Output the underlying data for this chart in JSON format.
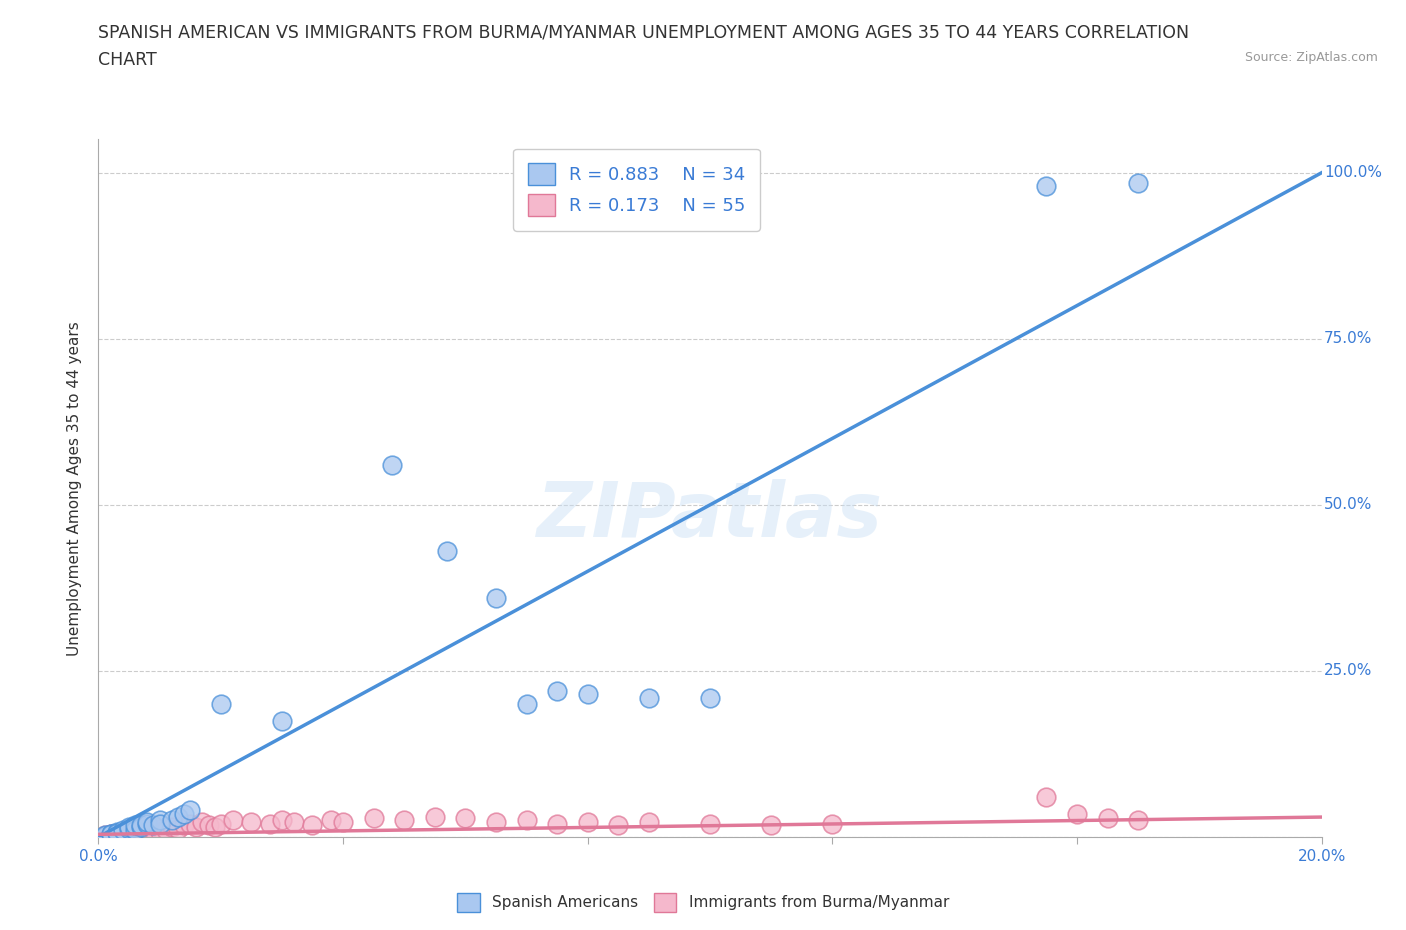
{
  "title_line1": "SPANISH AMERICAN VS IMMIGRANTS FROM BURMA/MYANMAR UNEMPLOYMENT AMONG AGES 35 TO 44 YEARS CORRELATION",
  "title_line2": "CHART",
  "source_text": "Source: ZipAtlas.com",
  "watermark": "ZIPatlas",
  "ylabel": "Unemployment Among Ages 35 to 44 years",
  "xlim": [
    0.0,
    0.2
  ],
  "ylim": [
    0.0,
    1.05
  ],
  "r_blue": 0.883,
  "n_blue": 34,
  "r_pink": 0.173,
  "n_pink": 55,
  "blue_color": "#aac8f0",
  "pink_color": "#f5b8cc",
  "blue_line_color": "#4a90d9",
  "pink_line_color": "#e07898",
  "legend_r_color": "#3a7bd5",
  "blue_scatter": [
    [
      0.001,
      0.002
    ],
    [
      0.001,
      0.003
    ],
    [
      0.002,
      0.005
    ],
    [
      0.002,
      0.004
    ],
    [
      0.003,
      0.008
    ],
    [
      0.003,
      0.006
    ],
    [
      0.004,
      0.01
    ],
    [
      0.005,
      0.012
    ],
    [
      0.005,
      0.015
    ],
    [
      0.006,
      0.01
    ],
    [
      0.006,
      0.018
    ],
    [
      0.007,
      0.015
    ],
    [
      0.007,
      0.018
    ],
    [
      0.008,
      0.02
    ],
    [
      0.008,
      0.022
    ],
    [
      0.009,
      0.018
    ],
    [
      0.01,
      0.025
    ],
    [
      0.01,
      0.02
    ],
    [
      0.012,
      0.025
    ],
    [
      0.013,
      0.03
    ],
    [
      0.014,
      0.035
    ],
    [
      0.015,
      0.04
    ],
    [
      0.02,
      0.2
    ],
    [
      0.03,
      0.175
    ],
    [
      0.048,
      0.56
    ],
    [
      0.057,
      0.43
    ],
    [
      0.065,
      0.36
    ],
    [
      0.07,
      0.2
    ],
    [
      0.075,
      0.22
    ],
    [
      0.08,
      0.215
    ],
    [
      0.09,
      0.21
    ],
    [
      0.1,
      0.21
    ],
    [
      0.155,
      0.98
    ],
    [
      0.17,
      0.985
    ]
  ],
  "pink_scatter": [
    [
      0.001,
      0.003
    ],
    [
      0.001,
      0.002
    ],
    [
      0.001,
      0.001
    ],
    [
      0.002,
      0.004
    ],
    [
      0.002,
      0.002
    ],
    [
      0.003,
      0.005
    ],
    [
      0.003,
      0.003
    ],
    [
      0.004,
      0.006
    ],
    [
      0.004,
      0.004
    ],
    [
      0.005,
      0.007
    ],
    [
      0.005,
      0.005
    ],
    [
      0.006,
      0.008
    ],
    [
      0.006,
      0.006
    ],
    [
      0.007,
      0.009
    ],
    [
      0.007,
      0.01
    ],
    [
      0.008,
      0.008
    ],
    [
      0.008,
      0.012
    ],
    [
      0.009,
      0.01
    ],
    [
      0.01,
      0.012
    ],
    [
      0.01,
      0.008
    ],
    [
      0.011,
      0.01
    ],
    [
      0.012,
      0.015
    ],
    [
      0.013,
      0.012
    ],
    [
      0.014,
      0.018
    ],
    [
      0.015,
      0.02
    ],
    [
      0.016,
      0.015
    ],
    [
      0.017,
      0.022
    ],
    [
      0.018,
      0.018
    ],
    [
      0.019,
      0.015
    ],
    [
      0.02,
      0.02
    ],
    [
      0.022,
      0.025
    ],
    [
      0.025,
      0.022
    ],
    [
      0.028,
      0.02
    ],
    [
      0.03,
      0.025
    ],
    [
      0.032,
      0.022
    ],
    [
      0.035,
      0.018
    ],
    [
      0.038,
      0.025
    ],
    [
      0.04,
      0.022
    ],
    [
      0.045,
      0.028
    ],
    [
      0.05,
      0.025
    ],
    [
      0.055,
      0.03
    ],
    [
      0.06,
      0.028
    ],
    [
      0.065,
      0.022
    ],
    [
      0.07,
      0.025
    ],
    [
      0.075,
      0.02
    ],
    [
      0.08,
      0.022
    ],
    [
      0.085,
      0.018
    ],
    [
      0.09,
      0.022
    ],
    [
      0.1,
      0.02
    ],
    [
      0.11,
      0.018
    ],
    [
      0.12,
      0.02
    ],
    [
      0.155,
      0.06
    ],
    [
      0.16,
      0.035
    ],
    [
      0.165,
      0.028
    ],
    [
      0.17,
      0.025
    ]
  ],
  "blue_line_x": [
    0.0,
    0.2
  ],
  "blue_line_y": [
    0.0,
    1.0
  ],
  "pink_line_x": [
    0.0,
    0.2
  ],
  "pink_line_y": [
    0.004,
    0.03
  ],
  "grid_color": "#cccccc",
  "background_color": "#ffffff",
  "title_fontsize": 12.5,
  "axis_label_fontsize": 11,
  "tick_fontsize": 11,
  "legend_fontsize": 13
}
